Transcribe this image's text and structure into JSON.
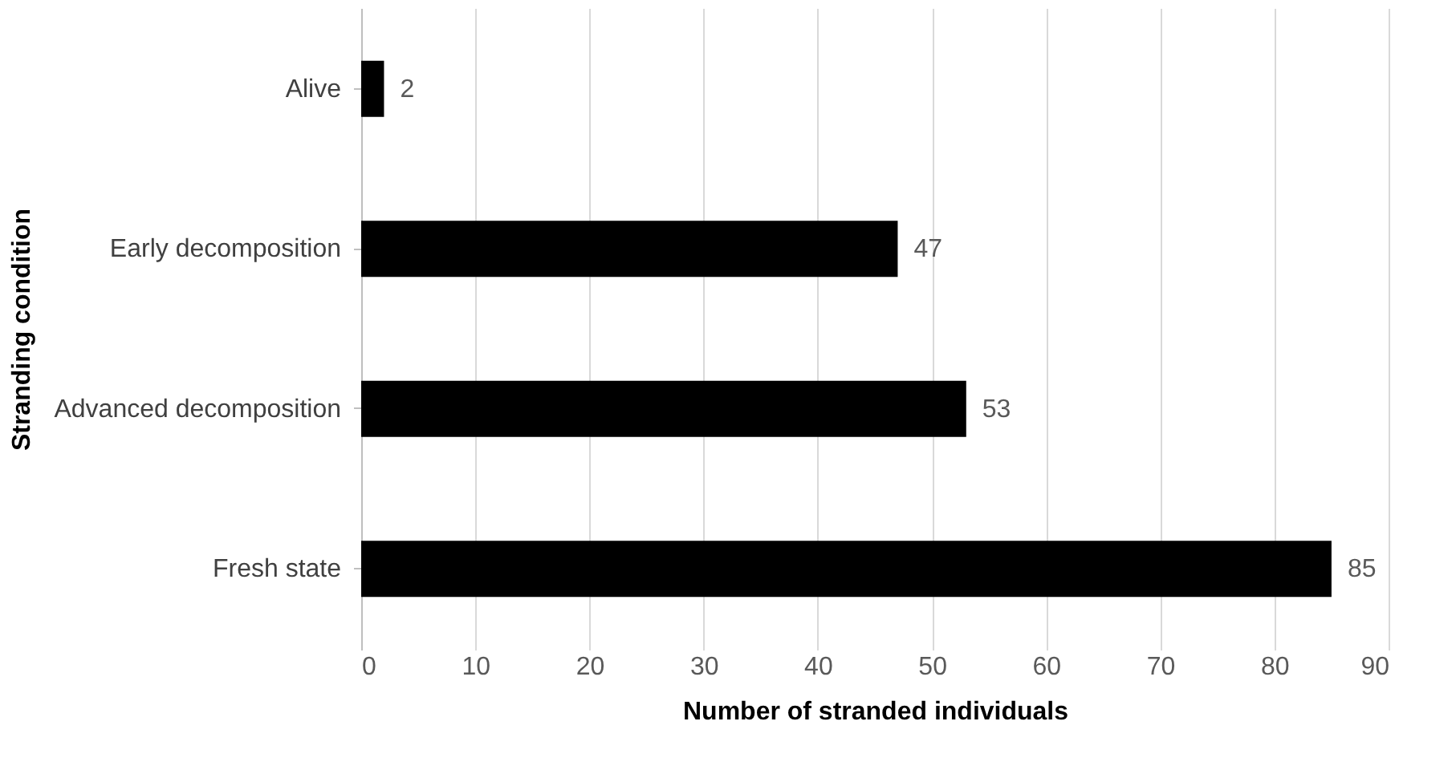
{
  "chart_data": {
    "type": "bar",
    "orientation": "horizontal",
    "categories": [
      "Alive",
      "Early decomposition",
      "Advanced decomposition",
      "Fresh state"
    ],
    "values": [
      2,
      47,
      53,
      85
    ],
    "color": "#000000",
    "xlim": [
      0,
      90
    ],
    "xticks": [
      0,
      10,
      20,
      30,
      40,
      50,
      60,
      70,
      80,
      90
    ],
    "xlabel": "Number of stranded individuals",
    "ylabel": "Stranding condition",
    "grid": "x",
    "data_labels": true
  }
}
